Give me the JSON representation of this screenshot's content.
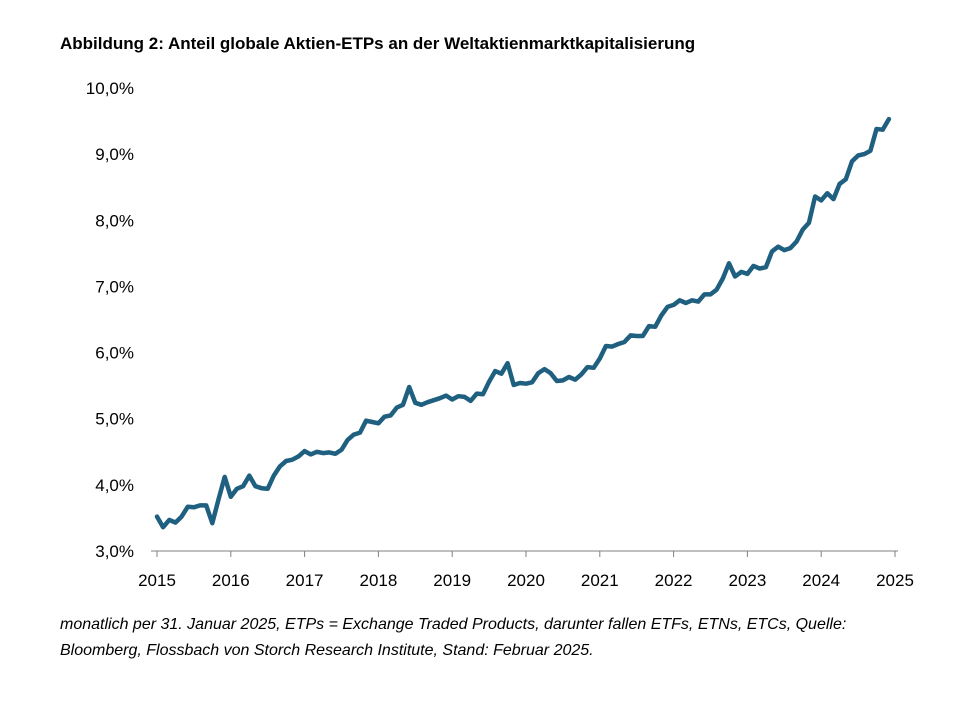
{
  "figure": {
    "title": "Abbildung 2: Anteil globale Aktien-ETPs an der Weltaktienmarktkapitalisierung",
    "caption_line1": "monatlich per 31. Januar 2025, ETPs = Exchange Traded Products, darunter fallen ETFs, ETNs, ETCs, Quelle:",
    "caption_line2": "Bloomberg, Flossbach von Storch Research Institute, Stand: Februar 2025."
  },
  "colors": {
    "line": "#1f5f7f",
    "axis": "#7f7f7f"
  },
  "chart_data": {
    "type": "line",
    "title": "Abbildung 2: Anteil globale Aktien-ETPs an der Weltaktienmarktkapitalisierung",
    "xlabel": "",
    "ylabel": "",
    "grid": false,
    "legend": "none",
    "xlim": [
      2015,
      2025
    ],
    "ylim": [
      3.0,
      10.0
    ],
    "x_ticks": [
      2015,
      2016,
      2017,
      2018,
      2019,
      2020,
      2021,
      2022,
      2023,
      2024,
      2025
    ],
    "x_tick_labels": [
      "2015",
      "2016",
      "2017",
      "2018",
      "2019",
      "2020",
      "2021",
      "2022",
      "2023",
      "2024",
      "2025"
    ],
    "y_ticks": [
      3.0,
      4.0,
      5.0,
      6.0,
      7.0,
      8.0,
      9.0,
      10.0
    ],
    "y_tick_labels": [
      "3,0%",
      "4,0%",
      "5,0%",
      "6,0%",
      "7,0%",
      "8,0%",
      "9,0%",
      "10,0%"
    ],
    "series": [
      {
        "name": "Anteil globale Aktien-ETPs an der Weltaktienmarktkapitalisierung",
        "unit": "%",
        "start": "2015-01",
        "frequency": "monthly",
        "values": [
          3.52,
          3.36,
          3.47,
          3.43,
          3.52,
          3.67,
          3.66,
          3.69,
          3.69,
          3.42,
          3.78,
          4.12,
          3.82,
          3.94,
          3.98,
          4.14,
          3.98,
          3.95,
          3.94,
          4.14,
          4.28,
          4.36,
          4.38,
          4.43,
          4.51,
          4.46,
          4.5,
          4.48,
          4.49,
          4.47,
          4.53,
          4.68,
          4.76,
          4.79,
          4.97,
          4.95,
          4.93,
          5.03,
          5.05,
          5.17,
          5.21,
          5.48,
          5.24,
          5.21,
          5.25,
          5.28,
          5.31,
          5.35,
          5.29,
          5.34,
          5.33,
          5.27,
          5.38,
          5.37,
          5.56,
          5.72,
          5.68,
          5.84,
          5.51,
          5.54,
          5.53,
          5.55,
          5.69,
          5.75,
          5.69,
          5.57,
          5.58,
          5.63,
          5.59,
          5.67,
          5.78,
          5.77,
          5.91,
          6.1,
          6.09,
          6.13,
          6.16,
          6.26,
          6.25,
          6.25,
          6.4,
          6.39,
          6.56,
          6.69,
          6.72,
          6.79,
          6.75,
          6.79,
          6.77,
          6.88,
          6.88,
          6.95,
          7.12,
          7.35,
          7.15,
          7.22,
          7.19,
          7.31,
          7.27,
          7.29,
          7.53,
          7.6,
          7.55,
          7.58,
          7.68,
          7.86,
          7.96,
          8.36,
          8.3,
          8.41,
          8.32,
          8.55,
          8.62,
          8.89,
          8.98,
          9.0,
          9.05,
          9.38,
          9.37,
          9.53
        ]
      }
    ]
  }
}
